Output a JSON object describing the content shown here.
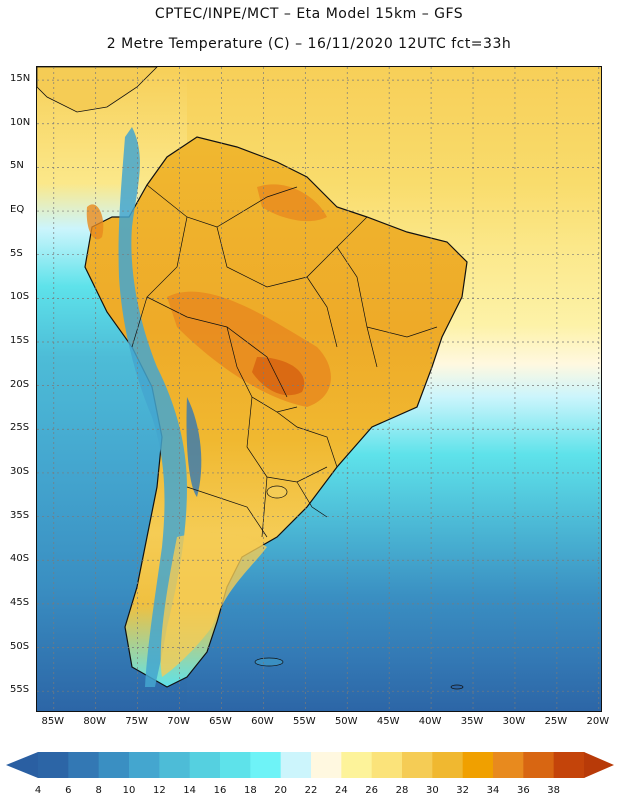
{
  "title_line1": "CPTEC/INPE/MCT –   Eta Model 15km – GFS",
  "title_line2": "2 Metre Temperature (C) – 16/11/2020 12UTC fct=33h",
  "lat_labels": [
    "15N",
    "10N",
    "5N",
    "EQ",
    "5S",
    "10S",
    "15S",
    "20S",
    "25S",
    "30S",
    "35S",
    "40S",
    "45S",
    "50S",
    "55S"
  ],
  "lat_values": [
    15,
    10,
    5,
    0,
    -5,
    -10,
    -15,
    -20,
    -25,
    -30,
    -35,
    -40,
    -45,
    -50,
    -55
  ],
  "lon_labels": [
    "85W",
    "80W",
    "75W",
    "70W",
    "65W",
    "60W",
    "55W",
    "50W",
    "45W",
    "40W",
    "35W",
    "30W",
    "25W",
    "20W"
  ],
  "lon_values": [
    -85,
    -80,
    -75,
    -70,
    -65,
    -60,
    -55,
    -50,
    -45,
    -40,
    -35,
    -30,
    -25,
    -20
  ],
  "colorbar": {
    "levels": [
      "4",
      "6",
      "8",
      "10",
      "12",
      "14",
      "16",
      "18",
      "20",
      "22",
      "24",
      "26",
      "28",
      "30",
      "32",
      "34",
      "36",
      "38"
    ],
    "colors": [
      "#2c65a6",
      "#3378b4",
      "#3a8fc2",
      "#44a6cf",
      "#4dbcd7",
      "#55d0e0",
      "#5ee2ea",
      "#6ef3f7",
      "#ccf5fc",
      "#fff8e0",
      "#fdf39a",
      "#fbe37a",
      "#f5cc55",
      "#f0b830",
      "#f0a000",
      "#e88a1e",
      "#d86612",
      "#c4440a"
    ],
    "under_color": "#2a5fa2",
    "over_color": "#b83a08"
  },
  "map_colors": {
    "ocean_cold": "#2c65a6",
    "ocean_cool": "#4dbcd7",
    "ocean_mild": "#6ef3f7",
    "ocean_warm": "#fbe37a",
    "ocean_tropical": "#f5cc55",
    "land_hot": "#f0b830",
    "land_very_hot": "#e88a1e",
    "andes": "#44a6cf",
    "border": "#111111"
  }
}
